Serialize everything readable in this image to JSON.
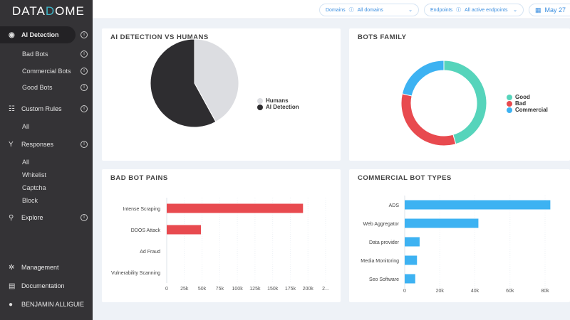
{
  "brand": {
    "logo_text_1": "DATA",
    "logo_text_2": "D",
    "logo_text_3": "OME"
  },
  "sidebar": {
    "items": [
      {
        "label": "AI Detection",
        "icon": "brain-icon",
        "active": true,
        "info": true
      },
      {
        "label": "Bad Bots",
        "sub": true,
        "info": true
      },
      {
        "label": "Commercial Bots",
        "sub": true,
        "info": true
      },
      {
        "label": "Good Bots",
        "sub": true,
        "info": true
      },
      {
        "label": "Custom Rules",
        "icon": "sliders-icon",
        "info": true
      },
      {
        "label": "All",
        "sub": true
      },
      {
        "label": "Responses",
        "icon": "fork-icon",
        "info": true
      },
      {
        "label": "All",
        "sub": true
      },
      {
        "label": "Whitelist",
        "sub": true
      },
      {
        "label": "Captcha",
        "sub": true
      },
      {
        "label": "Block",
        "sub": true
      },
      {
        "label": "Explore",
        "icon": "search-icon",
        "info": true
      }
    ],
    "bottom": [
      {
        "label": "Management",
        "icon": "gear-icon"
      },
      {
        "label": "Documentation",
        "icon": "document-icon"
      },
      {
        "label": "BENJAMIN ALLIGUIE",
        "icon": "user-icon"
      }
    ]
  },
  "topbar": {
    "domains_label": "Domains",
    "domains_value": "All domains",
    "endpoints_label": "Endpoints",
    "endpoints_value": "All active endpoints",
    "date": "May 27"
  },
  "chart_data": [
    {
      "type": "pie",
      "title": "AI DETECTION VS HUMANS",
      "labels": [
        "Humans",
        "AI Detection"
      ],
      "values": [
        42,
        58
      ],
      "colors": [
        "#dcdde1",
        "#2e2d30"
      ],
      "legend": "right"
    },
    {
      "type": "pie",
      "donut": true,
      "title": "BOTS FAMILY",
      "labels": [
        "Good",
        "Bad",
        "Commercial"
      ],
      "values": [
        45.5,
        33,
        21.5
      ],
      "colors": [
        "#56d4bb",
        "#e84a4f",
        "#3db2f2"
      ],
      "legend": "right"
    },
    {
      "type": "bar",
      "orientation": "horizontal",
      "title": "BAD BOT PAINS",
      "categories": [
        "Intense Scraping",
        "DDOS Attack",
        "Ad Fraud",
        "Vulnerability Scanning"
      ],
      "values": [
        193000,
        48500,
        0,
        0
      ],
      "xticks": [
        "0",
        "25k",
        "50k",
        "75k",
        "100k",
        "125k",
        "150k",
        "175k",
        "200k",
        "2..."
      ],
      "xlim": [
        0,
        225000
      ],
      "color": "#e84a4f"
    },
    {
      "type": "bar",
      "orientation": "horizontal",
      "title": "COMMERCIAL BOT TYPES",
      "categories": [
        "ADS",
        "Web Aggregator",
        "Data provider",
        "Media Monitoring",
        "Seo Software"
      ],
      "values": [
        83000,
        42000,
        8500,
        7000,
        6000
      ],
      "xticks": [
        "0",
        "20k",
        "40k",
        "60k",
        "80k"
      ],
      "xlim": [
        0,
        80000
      ],
      "color": "#3db2f2"
    }
  ]
}
